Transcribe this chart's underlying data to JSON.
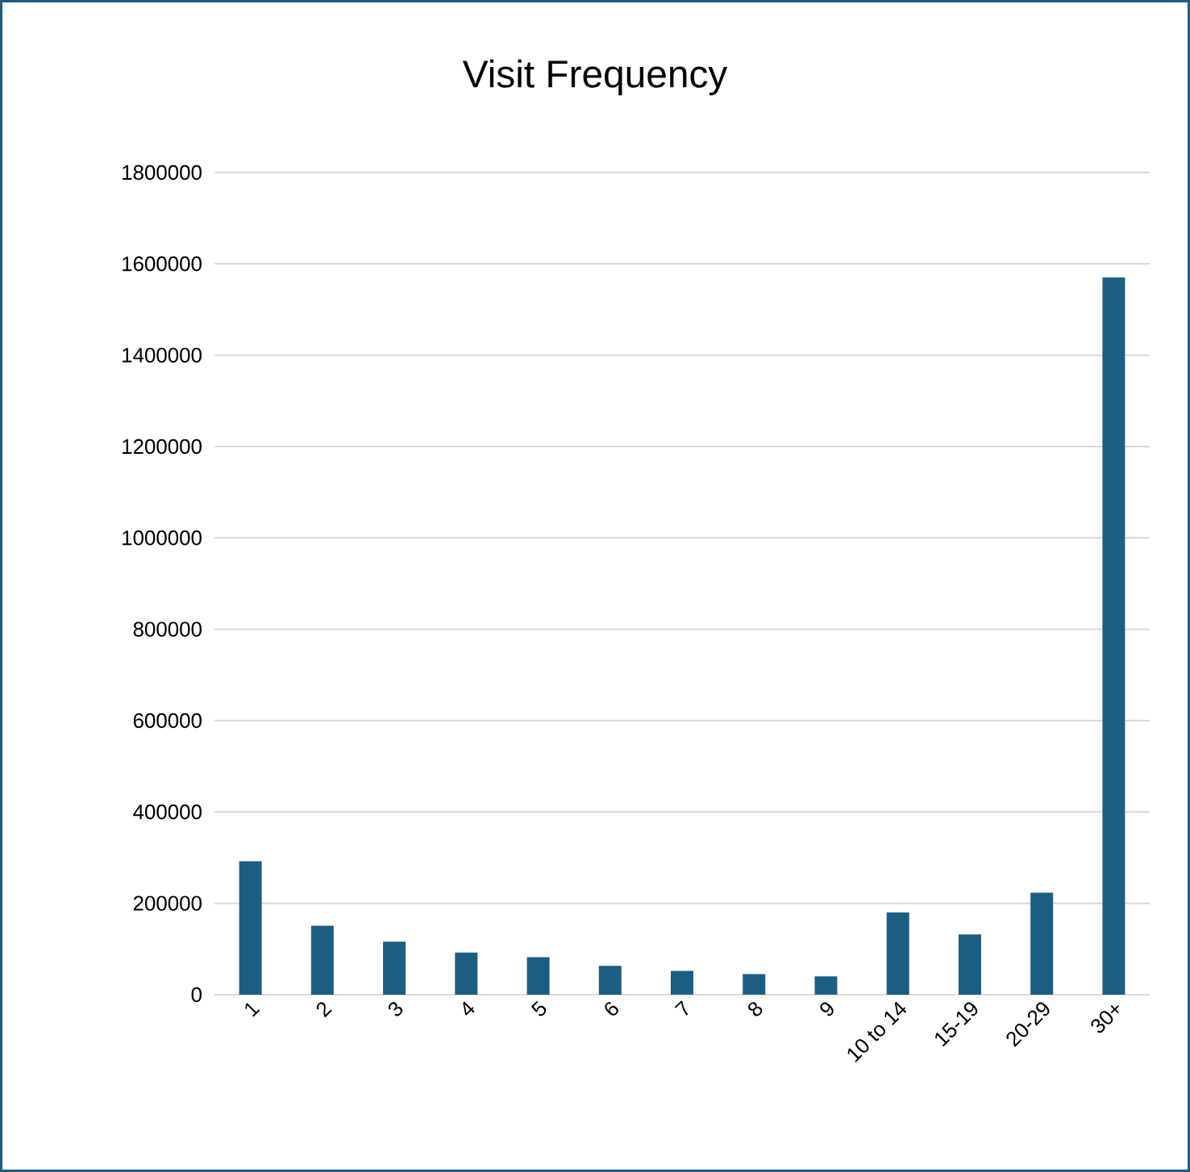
{
  "chart_data": {
    "type": "bar",
    "title": "Visit Frequency",
    "categories": [
      "1",
      "2",
      "3",
      "4",
      "5",
      "6",
      "7",
      "8",
      "9",
      "10 to 14",
      "15-19",
      "20-29",
      "30+"
    ],
    "values": [
      292000,
      151000,
      116000,
      92000,
      82000,
      63000,
      52000,
      45000,
      40000,
      180000,
      132000,
      223000,
      1570000
    ],
    "color": "#1b5e82",
    "ylim": [
      0,
      1800000
    ],
    "yticks": [
      0,
      200000,
      400000,
      600000,
      800000,
      1000000,
      1200000,
      1400000,
      1600000,
      1800000
    ],
    "grid": "y"
  }
}
